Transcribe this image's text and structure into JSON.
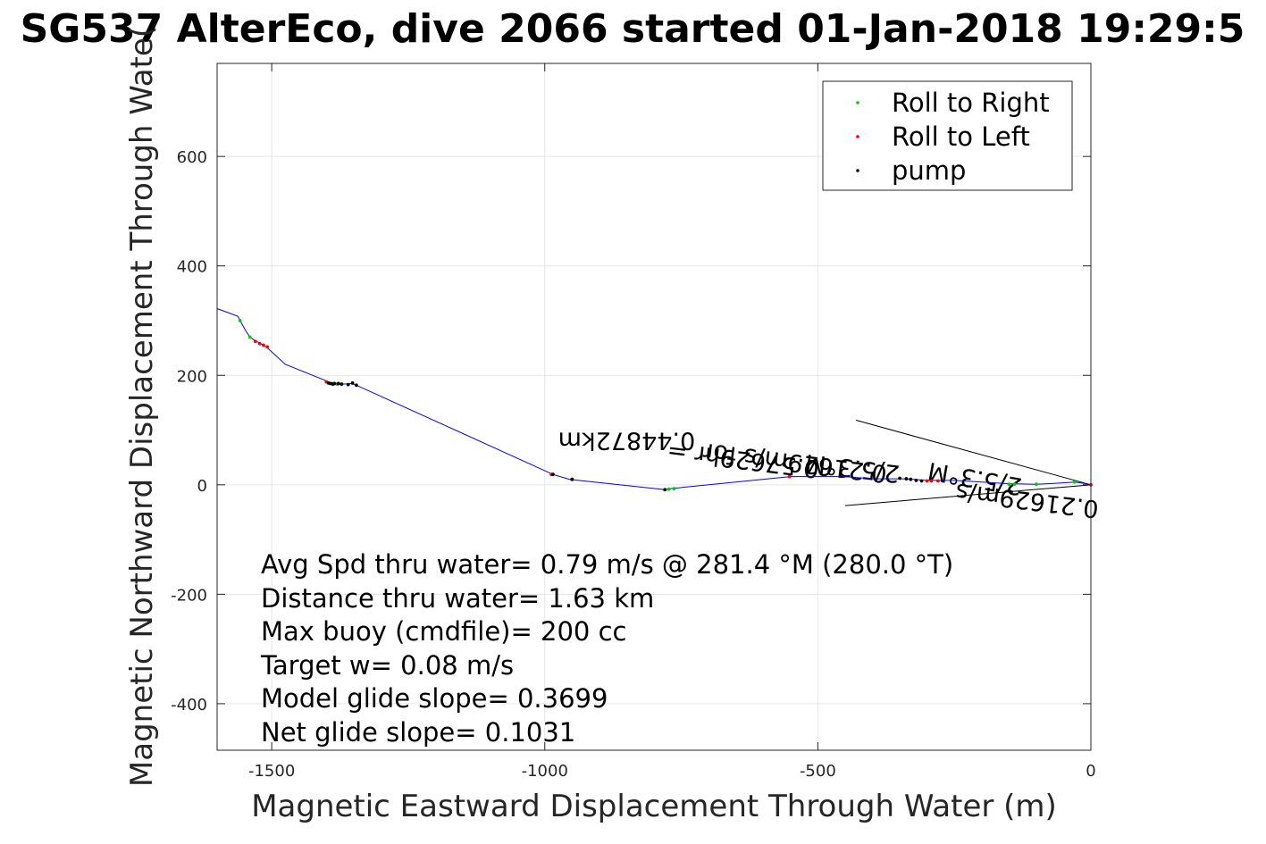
{
  "chart_data": {
    "type": "line",
    "title": "SG537 AlterEco, dive 2066 started 01-Jan-2018 19:29:5",
    "xlabel": "Magnetic Eastward Displacement Through Water (m)",
    "ylabel": "Magnetic Northward Displacement Through Wate(",
    "xlim": [
      -1600,
      0
    ],
    "ylim": [
      -485,
      770
    ],
    "xticks": [
      -1500,
      -1000,
      -500,
      0
    ],
    "yticks": [
      -400,
      -200,
      0,
      200,
      400,
      600
    ],
    "xtick_labels": [
      "-1500",
      "-1000",
      "-500",
      "0"
    ],
    "ytick_labels": [
      "-400",
      "-200",
      "0",
      "200",
      "400",
      "600"
    ],
    "grid": true,
    "legend_position": "top-right",
    "colors": {
      "track": "#0000ff",
      "right": "#00cc00",
      "left": "#ff0000",
      "pump": "#000000",
      "grid": "#e6e6e6"
    },
    "series": [
      {
        "name": "track",
        "x": [
          -1600,
          -1562,
          -1555,
          -1548,
          -1540,
          -1530,
          -1520,
          -1510,
          -1475,
          -1400,
          -1395,
          -1385,
          -1370,
          -1355,
          -1345,
          -985,
          -955,
          -780,
          -770,
          -550,
          -450,
          -400,
          -340,
          -300,
          -250,
          -200,
          -150,
          -100,
          -60,
          -30,
          -15,
          0
        ],
        "y": [
          322,
          308,
          295,
          282,
          270,
          263,
          258,
          252,
          220,
          190,
          186,
          185,
          184,
          185,
          182,
          19,
          10,
          -9,
          -7,
          15,
          15,
          11,
          11,
          8,
          8,
          5,
          2,
          1,
          3,
          5,
          3,
          0
        ]
      },
      {
        "name": "Roll to Right",
        "x": [
          -1558,
          -1540,
          -1388,
          -1380,
          -773,
          -763,
          -150,
          -140,
          -100,
          -30
        ],
        "y": [
          300,
          270,
          185,
          184,
          -8,
          -7,
          1,
          1,
          1,
          5
        ]
      },
      {
        "name": "Roll to Left",
        "x": [
          -1530,
          -1522,
          -1515,
          -1508,
          -1400,
          -988,
          -950,
          -552,
          -330,
          -300,
          -292,
          -280,
          0
        ],
        "y": [
          262,
          258,
          255,
          252,
          188,
          19,
          10,
          15,
          10,
          7,
          7,
          7,
          0
        ]
      },
      {
        "name": "pump",
        "x": [
          -1396,
          -1392,
          -1388,
          -1385,
          -1378,
          -1372,
          -1360,
          -1352,
          -1345,
          -985,
          -950,
          -780,
          -350,
          -338,
          -330,
          -320,
          -310
        ],
        "y": [
          186,
          185,
          184,
          185,
          185,
          184,
          183,
          186,
          182,
          19,
          10,
          -9,
          12,
          11,
          10,
          8,
          7
        ]
      }
    ],
    "lines": [
      {
        "x": [
          -430,
          0
        ],
        "y": [
          118,
          0
        ]
      },
      {
        "x": [
          -450,
          0
        ],
        "y": [
          -38,
          0
        ]
      }
    ],
    "annotations": [
      {
        "text": "0.44872km",
        "x": -850,
        "y": 95,
        "rotation": 180
      },
      {
        "text": "0.57629hr =",
        "x": -635,
        "y": 60,
        "rotation": 187
      },
      {
        "text": "2/5.3°M",
        "x": -435,
        "y": 45,
        "rotation": 187
      },
      {
        "text": "0.21629m/s for",
        "x": -540,
        "y": 55,
        "rotation": 187
      },
      {
        "text": "2/5.3°M",
        "x": -210,
        "y": 26,
        "rotation": 190
      },
      {
        "text": "0.21629m/s",
        "x": -115,
        "y": -14,
        "rotation": 187
      }
    ],
    "stats": [
      "Avg Spd thru water=  0.79 m/s @ 281.4 °M (280.0 °T)",
      "Distance thru water=  1.63 km",
      "Max buoy (cmdfile)= 200 cc",
      "Target w= 0.08 m/s",
      "Model glide slope= 0.3699",
      "Net glide slope= 0.1031"
    ]
  }
}
